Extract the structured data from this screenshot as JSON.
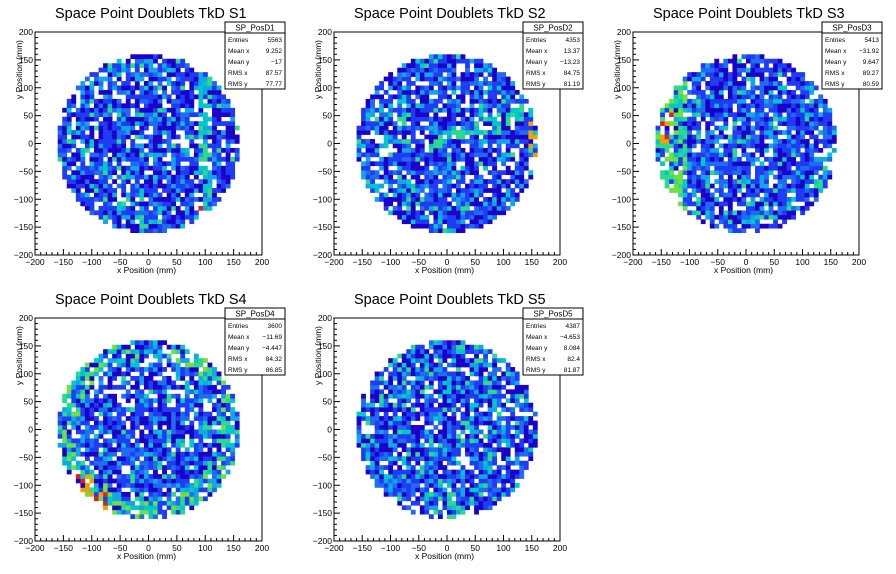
{
  "chart_data": [
    {
      "type": "heatmap",
      "title": "Space Point Doublets TkD S1",
      "xlabel": "x Position (mm)",
      "ylabel": "y Position (mm)",
      "xlim": [
        -200,
        200
      ],
      "ylim": [
        -200,
        200
      ],
      "xticks": [
        "−200",
        "−150",
        "−100",
        "−50",
        "0",
        "50",
        "100",
        "150",
        "200"
      ],
      "yticks": [
        "−200",
        "−150",
        "−100",
        "−50",
        "0",
        "50",
        "100",
        "150",
        "200"
      ],
      "stats": {
        "name": "SP_PosD1",
        "rows": [
          [
            "Entries",
            "5563"
          ],
          [
            "Mean x",
            "9.252"
          ],
          [
            "Mean y",
            "−17"
          ],
          [
            "RMS x",
            "87.57"
          ],
          [
            "RMS y",
            "77.77"
          ]
        ]
      },
      "radius_mm": 160,
      "bin_mm": 8,
      "hotspot": "vertical-stripe-x100"
    },
    {
      "type": "heatmap",
      "title": "Space Point Doublets TkD S2",
      "xlabel": "x Position (mm)",
      "ylabel": "y Position (mm)",
      "xlim": [
        -200,
        200
      ],
      "ylim": [
        -200,
        200
      ],
      "xticks": [
        "−200",
        "−150",
        "−100",
        "−50",
        "0",
        "50",
        "100",
        "150",
        "200"
      ],
      "yticks": [
        "−200",
        "−150",
        "−100",
        "−50",
        "0",
        "50",
        "100",
        "150",
        "200"
      ],
      "stats": {
        "name": "SP_PosD2",
        "rows": [
          [
            "Entries",
            "4353"
          ],
          [
            "Mean x",
            "13.37"
          ],
          [
            "Mean y",
            "−13.23"
          ],
          [
            "RMS x",
            "84.75"
          ],
          [
            "RMS y",
            "81.19"
          ]
        ]
      },
      "radius_mm": 160,
      "bin_mm": 8,
      "hotspot": "diagonal-band"
    },
    {
      "type": "heatmap",
      "title": "Space Point Doublets TkD S3",
      "xlabel": "x Position (mm)",
      "ylabel": "y Position (mm)",
      "xlim": [
        -200,
        200
      ],
      "ylim": [
        -200,
        200
      ],
      "xticks": [
        "−200",
        "−150",
        "−100",
        "−50",
        "0",
        "50",
        "100",
        "150",
        "200"
      ],
      "yticks": [
        "−200",
        "−150",
        "−100",
        "−50",
        "0",
        "50",
        "100",
        "150",
        "200"
      ],
      "stats": {
        "name": "SP_PosD3",
        "rows": [
          [
            "Entries",
            "5413"
          ],
          [
            "Mean x",
            "−31.92"
          ],
          [
            "Mean y",
            "9.647"
          ],
          [
            "RMS x",
            "89.27"
          ],
          [
            "RMS y",
            "80.59"
          ]
        ]
      },
      "radius_mm": 160,
      "bin_mm": 8,
      "hotspot": "left-edge"
    },
    {
      "type": "heatmap",
      "title": "Space Point Doublets TkD S4",
      "xlabel": "x Position (mm)",
      "ylabel": "y Position (mm)",
      "xlim": [
        -200,
        200
      ],
      "ylim": [
        -200,
        200
      ],
      "xticks": [
        "−200",
        "−150",
        "−100",
        "−50",
        "0",
        "50",
        "100",
        "150",
        "200"
      ],
      "yticks": [
        "−200",
        "−150",
        "−100",
        "−50",
        "0",
        "50",
        "100",
        "150",
        "200"
      ],
      "stats": {
        "name": "SP_PosD4",
        "rows": [
          [
            "Entries",
            "3600"
          ],
          [
            "Mean x",
            "−11.69"
          ],
          [
            "Mean y",
            "−4.447"
          ],
          [
            "RMS x",
            "84.32"
          ],
          [
            "RMS y",
            "86.85"
          ]
        ]
      },
      "radius_mm": 160,
      "bin_mm": 8,
      "hotspot": "rim"
    },
    {
      "type": "heatmap",
      "title": "Space Point Doublets TkD S5",
      "xlabel": "x Position (mm)",
      "ylabel": "y Position (mm)",
      "xlim": [
        -200,
        200
      ],
      "ylim": [
        -200,
        200
      ],
      "xticks": [
        "−200",
        "−150",
        "−100",
        "−50",
        "0",
        "50",
        "100",
        "150",
        "200"
      ],
      "yticks": [
        "−200",
        "−150",
        "−100",
        "−50",
        "0",
        "50",
        "100",
        "150",
        "200"
      ],
      "stats": {
        "name": "SP_PosD5",
        "rows": [
          [
            "Entries",
            "4387"
          ],
          [
            "Mean x",
            "−4.653"
          ],
          [
            "Mean y",
            "8.084"
          ],
          [
            "RMS x",
            "82.4"
          ],
          [
            "RMS y",
            "81.87"
          ]
        ]
      },
      "radius_mm": 160,
      "bin_mm": 8,
      "hotspot": "uniform"
    }
  ],
  "palette": [
    "#1a00c8",
    "#1f3cf5",
    "#1e6cf0",
    "#13a6e6",
    "#00c8c8",
    "#2fd88a",
    "#6fe040",
    "#f0a000",
    "#e02020"
  ]
}
